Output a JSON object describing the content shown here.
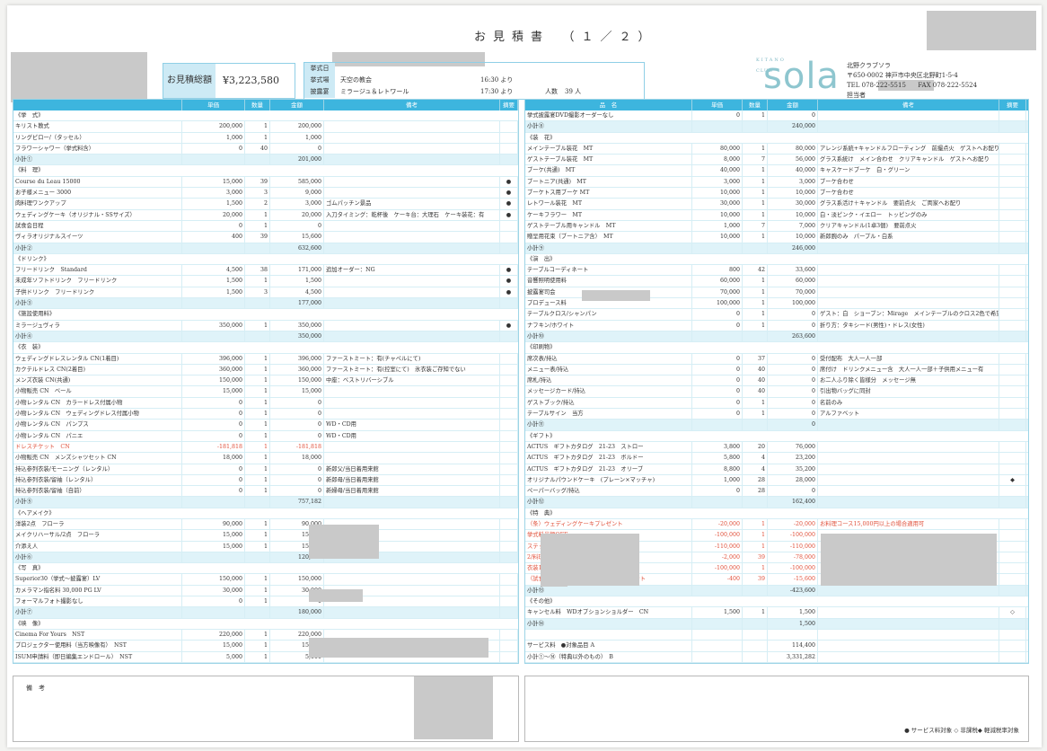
{
  "header": {
    "title": "お見積書　（１／２）",
    "total_label": "お見積総額",
    "total_value": "¥3,223,580",
    "info": {
      "date_label": "挙式日",
      "venue_label": "挙式場",
      "venue_value": "天空の教会",
      "venue_time": "16:30 より",
      "reception_label": "披露宴",
      "reception_value": "ミラージュ＆レトワール",
      "reception_time": "17:30 より",
      "guests_label": "人数",
      "guests_value": "39 人"
    }
  },
  "company": {
    "logo_top": "KITANO",
    "logo_text": "sola",
    "logo_sub": "CLUB",
    "name": "北野クラブソラ",
    "address": "〒650-0002 神戸市中央区北野町1-5-4",
    "tel": "TEL 078-222-5515",
    "fax": "FAX 078-222-5524",
    "person_label": "担当者"
  },
  "columns_left": [
    "",
    "単価",
    "数量",
    "金額",
    "備考",
    "摘要"
  ],
  "columns_right": [
    "品　名",
    "単価",
    "数量",
    "金額",
    "備考",
    "摘要"
  ],
  "left_rows": [
    {
      "t": "s",
      "name": "《挙　式》"
    },
    {
      "name": "キリスト教式",
      "price": "200,000",
      "qty": "1",
      "amt": "200,000",
      "note": "",
      "mark": ""
    },
    {
      "name": "リングピロー/（タッセル）",
      "price": "1,000",
      "qty": "1",
      "amt": "1,000",
      "note": "",
      "mark": ""
    },
    {
      "name": "フラワーシャワー（挙式料含）",
      "price": "0",
      "qty": "40",
      "amt": "0",
      "note": "",
      "mark": ""
    },
    {
      "t": "sub",
      "name": "小計①",
      "amt": "201,000"
    },
    {
      "t": "s",
      "name": "《料　理》"
    },
    {
      "name": "Course du Leau 15000",
      "price": "15,000",
      "qty": "39",
      "amt": "585,000",
      "note": "",
      "mark": "●"
    },
    {
      "name": "お子様メニュー 3000",
      "price": "3,000",
      "qty": "3",
      "amt": "9,000",
      "note": "",
      "mark": "●"
    },
    {
      "name": "肉料理ワンクアップ",
      "price": "1,500",
      "qty": "2",
      "amt": "3,000",
      "note": "ゴムパッチン景品",
      "mark": "●"
    },
    {
      "name": "ウェディングケーキ（オリジナル・SSサイズ）",
      "price": "20,000",
      "qty": "1",
      "amt": "20,000",
      "note": "入刀タイミング：乾杯後　ケーキ台：大理石　ケーキ装花：有",
      "mark": "●"
    },
    {
      "name": "試食会日程",
      "price": "0",
      "qty": "1",
      "amt": "0",
      "note": "",
      "mark": ""
    },
    {
      "name": "ヴィラオリジナルスイーツ",
      "price": "400",
      "qty": "39",
      "amt": "15,600",
      "note": "",
      "mark": ""
    },
    {
      "t": "sub",
      "name": "小計②",
      "amt": "632,600"
    },
    {
      "t": "s",
      "name": "《ドリンク》"
    },
    {
      "name": "フリードリンク　Standard",
      "price": "4,500",
      "qty": "38",
      "amt": "171,000",
      "note": "追加オーダー：NG",
      "mark": "●"
    },
    {
      "name": "未成年ソフトドリンク　フリードリンク",
      "price": "1,500",
      "qty": "1",
      "amt": "1,500",
      "note": "",
      "mark": "●"
    },
    {
      "name": "子供ドリンク　フリードリンク",
      "price": "1,500",
      "qty": "3",
      "amt": "4,500",
      "note": "",
      "mark": "●"
    },
    {
      "t": "sub",
      "name": "小計③",
      "amt": "177,000"
    },
    {
      "t": "s",
      "name": "《施設使用料》"
    },
    {
      "name": "ミラージュヴィラ",
      "price": "350,000",
      "qty": "1",
      "amt": "350,000",
      "note": "",
      "mark": "●"
    },
    {
      "t": "sub",
      "name": "小計④",
      "amt": "350,000"
    },
    {
      "t": "s",
      "name": "《衣　装》"
    },
    {
      "name": "ウェディングドレスレンタル CN(1着目)",
      "price": "396,000",
      "qty": "1",
      "amt": "396,000",
      "note": "ファーストミート：有(チャペルにて)",
      "mark": ""
    },
    {
      "name": "カクテルドレス CN(2着目)",
      "price": "360,000",
      "qty": "1",
      "amt": "360,000",
      "note": "ファーストミート：有(控室にて)　氷衣装ご存知でない",
      "mark": ""
    },
    {
      "name": "メンズ衣装 CN(共通)",
      "price": "150,000",
      "qty": "1",
      "amt": "150,000",
      "note": "中座：ベストリバーシブル",
      "mark": ""
    },
    {
      "name": "小物販売 CN　ベール",
      "price": "15,000",
      "qty": "1",
      "amt": "15,000",
      "note": "",
      "mark": ""
    },
    {
      "name": "小物レンタル CN　カラードレス付属小物",
      "price": "0",
      "qty": "1",
      "amt": "0",
      "note": "",
      "mark": ""
    },
    {
      "name": "小物レンタル CN　ウェディングドレス付属小物",
      "price": "0",
      "qty": "1",
      "amt": "0",
      "note": "",
      "mark": ""
    },
    {
      "name": "小物レンタル CN　パンプス",
      "price": "0",
      "qty": "1",
      "amt": "0",
      "note": "WD・CD用",
      "mark": ""
    },
    {
      "name": "小物レンタル CN　パニエ",
      "price": "0",
      "qty": "1",
      "amt": "0",
      "note": "WD・CD用",
      "mark": ""
    },
    {
      "t": "red",
      "name": "ドレスチケット　CN",
      "price": "-181,818",
      "qty": "1",
      "amt": "-181,818",
      "note": "",
      "mark": ""
    },
    {
      "name": "小物販売 CN　メンズシャツセット CN",
      "price": "18,000",
      "qty": "1",
      "amt": "18,000",
      "note": "",
      "mark": ""
    },
    {
      "name": "持込参列衣装/モーニング（レンタル）",
      "price": "0",
      "qty": "1",
      "amt": "0",
      "note": "新郎父/当日着用来館",
      "mark": ""
    },
    {
      "name": "持込参列衣装/留袖（レンタル）",
      "price": "0",
      "qty": "1",
      "amt": "0",
      "note": "新郎母/当日着用来館",
      "mark": ""
    },
    {
      "name": "持込参列衣装/留袖（自前）",
      "price": "0",
      "qty": "1",
      "amt": "0",
      "note": "新婦母/当日着用来館",
      "mark": ""
    },
    {
      "t": "sub",
      "name": "小計⑤",
      "amt": "757,182"
    },
    {
      "t": "s",
      "name": "《ヘアメイク》"
    },
    {
      "name": "洋装2点　フローラ",
      "price": "90,000",
      "qty": "1",
      "amt": "90,000",
      "note": "",
      "mark": ""
    },
    {
      "name": "メイクリハーサル/2点　フローラ",
      "price": "15,000",
      "qty": "1",
      "amt": "15,000",
      "note": "",
      "mark": ""
    },
    {
      "name": "介添え人",
      "price": "15,000",
      "qty": "1",
      "amt": "15,000",
      "note": "",
      "mark": ""
    },
    {
      "t": "sub",
      "name": "小計⑥",
      "amt": "120,000"
    },
    {
      "t": "s",
      "name": "《写　真》"
    },
    {
      "name": "Superior30（挙式〜披露宴）LV",
      "price": "150,000",
      "qty": "1",
      "amt": "150,000",
      "note": "",
      "mark": ""
    },
    {
      "name": "カメラマン指名料 30,000 PG LV",
      "price": "30,000",
      "qty": "1",
      "amt": "30,000",
      "note": "",
      "mark": ""
    },
    {
      "name": "フォーマルフォト撮影なし",
      "price": "0",
      "qty": "1",
      "amt": "0",
      "note": "",
      "mark": ""
    },
    {
      "t": "sub",
      "name": "小計⑦",
      "amt": "180,000"
    },
    {
      "t": "s",
      "name": "《映　像》"
    },
    {
      "name": "Cinema For Yours　NST",
      "price": "220,000",
      "qty": "1",
      "amt": "220,000",
      "note": "",
      "mark": ""
    },
    {
      "name": "プロジェクター使用料（当方映像有）　NST",
      "price": "15,000",
      "qty": "1",
      "amt": "15,000",
      "note": "",
      "mark": ""
    },
    {
      "name": "ISUM申請料（即日編集エンドロール）　NST",
      "price": "5,000",
      "qty": "1",
      "amt": "5,000",
      "note": "",
      "mark": ""
    }
  ],
  "right_rows": [
    {
      "name": "挙式披露宴DVD撮影オーダーなし",
      "price": "0",
      "qty": "1",
      "amt": "0",
      "note": "",
      "mark": ""
    },
    {
      "t": "sub",
      "name": "小計⑧",
      "amt": "240,000"
    },
    {
      "t": "s",
      "name": "《装　花》"
    },
    {
      "name": "メインテーブル装花　MT",
      "price": "80,000",
      "qty": "1",
      "amt": "80,000",
      "note": "アレンジ系統+キャンドルフローティング　前撮点火　ゲストへお配り",
      "mark": ""
    },
    {
      "name": "ゲストテーブル装花　MT",
      "price": "8,000",
      "qty": "7",
      "amt": "56,000",
      "note": "グラス系統け　メイン合わせ　クリアキャンドル　ゲストへお配り",
      "mark": ""
    },
    {
      "name": "ブーケ(共通)　MT",
      "price": "40,000",
      "qty": "1",
      "amt": "40,000",
      "note": "キャスケードブーケ　白・グリーン",
      "mark": ""
    },
    {
      "name": "ブートニア(共通)　MT",
      "price": "3,000",
      "qty": "1",
      "amt": "3,000",
      "note": "ブーケ合わせ",
      "mark": ""
    },
    {
      "name": "ブーケトス用ブーケ MT",
      "price": "10,000",
      "qty": "1",
      "amt": "10,000",
      "note": "ブーケ合わせ",
      "mark": ""
    },
    {
      "name": "レトワール装花　MT",
      "price": "30,000",
      "qty": "1",
      "amt": "30,000",
      "note": "グラス系活け＋キャンドル　要前点火　ご両家へお配り",
      "mark": ""
    },
    {
      "name": "ケーキフラワー　MT",
      "price": "10,000",
      "qty": "1",
      "amt": "10,000",
      "note": "白・淡ピンク・イエロー　トッピングのみ",
      "mark": ""
    },
    {
      "name": "ゲストテーブル用キャンドル　MT",
      "price": "1,000",
      "qty": "7",
      "amt": "7,000",
      "note": "クリアキャンドル(1卓3個)　要前点火",
      "mark": ""
    },
    {
      "name": "贈呈用花束（ブートニア含）　MT",
      "price": "10,000",
      "qty": "1",
      "amt": "10,000",
      "note": "新郎腕のみ　パープル・白系",
      "mark": ""
    },
    {
      "t": "sub",
      "name": "小計⑨",
      "amt": "246,000"
    },
    {
      "t": "s",
      "name": "《演　出》"
    },
    {
      "name": "テーブルコーディネート",
      "price": "800",
      "qty": "42",
      "amt": "33,600",
      "note": "",
      "mark": ""
    },
    {
      "name": "音響照明使用料",
      "price": "60,000",
      "qty": "1",
      "amt": "60,000",
      "note": "",
      "mark": ""
    },
    {
      "name": "披露宴司会",
      "price": "70,000",
      "qty": "1",
      "amt": "70,000",
      "note": "",
      "mark": ""
    },
    {
      "name": "プロデュース料",
      "price": "100,000",
      "qty": "1",
      "amt": "100,000",
      "note": "",
      "mark": ""
    },
    {
      "name": "テーブルクロス/シャンパン",
      "price": "0",
      "qty": "1",
      "amt": "0",
      "note": "ゲスト：白　ショーブン：Mirage　メインテーブルのクロス2色で希望",
      "mark": ""
    },
    {
      "name": "ナフキン/ホワイト",
      "price": "0",
      "qty": "1",
      "amt": "0",
      "note": "折り方：タキシード(男性)・ドレス(女性)",
      "mark": ""
    },
    {
      "t": "sub",
      "name": "小計⑩",
      "amt": "263,600"
    },
    {
      "t": "s",
      "name": "《印刷物》"
    },
    {
      "name": "席次表/持込",
      "price": "0",
      "qty": "37",
      "amt": "0",
      "note": "受付配布　大人一人一部",
      "mark": ""
    },
    {
      "name": "メニュー表/持込",
      "price": "0",
      "qty": "40",
      "amt": "0",
      "note": "席付け　ドリンクメニュー含　大人一人一部＋子供用メニュー有",
      "mark": ""
    },
    {
      "name": "席札/持込",
      "price": "0",
      "qty": "40",
      "amt": "0",
      "note": "お二人ふり除く皆様分　メッセージ無",
      "mark": ""
    },
    {
      "name": "メッセージカード/持込",
      "price": "0",
      "qty": "40",
      "amt": "0",
      "note": "引出物バッグに同封",
      "mark": ""
    },
    {
      "name": "ゲストブック/持込",
      "price": "0",
      "qty": "1",
      "amt": "0",
      "note": "名前のみ",
      "mark": ""
    },
    {
      "name": "テーブルサイン　当方",
      "price": "0",
      "qty": "1",
      "amt": "0",
      "note": "アルファベット",
      "mark": ""
    },
    {
      "t": "sub",
      "name": "小計⑪",
      "amt": "0"
    },
    {
      "t": "s",
      "name": "《ギフト》"
    },
    {
      "name": "ACTUS　ギフトカタログ　21-23　ストロー",
      "price": "3,800",
      "qty": "20",
      "amt": "76,000",
      "note": "",
      "mark": ""
    },
    {
      "name": "ACTUS　ギフトカタログ　21-23　ボルドー",
      "price": "5,800",
      "qty": "4",
      "amt": "23,200",
      "note": "",
      "mark": ""
    },
    {
      "name": "ACTUS　ギフトカタログ　21-23　オリーブ",
      "price": "8,800",
      "qty": "4",
      "amt": "35,200",
      "note": "",
      "mark": ""
    },
    {
      "name": "オリジナルパウンドケーキ　(プレーン×マッチャ)",
      "price": "1,000",
      "qty": "28",
      "amt": "28,000",
      "note": "",
      "mark": "◆"
    },
    {
      "name": "ペーパーバッグ/持込",
      "price": "0",
      "qty": "28",
      "amt": "0",
      "note": "",
      "mark": ""
    },
    {
      "t": "sub",
      "name": "小計⑫",
      "amt": "162,400"
    },
    {
      "t": "s",
      "name": "《特　典》"
    },
    {
      "t": "red",
      "name": "（条）ウェディングケーキプレゼント",
      "price": "-20,000",
      "qty": "1",
      "amt": "-20,000",
      "note": "お料理コース15,000円以上の場合適用可",
      "mark": ""
    },
    {
      "t": "red",
      "name": "挙式料半額OFF",
      "price": "-100,000",
      "qty": "1",
      "amt": "-100,000",
      "note": "",
      "mark": ""
    },
    {
      "t": "red",
      "name": "ステップアップ料金10万円分",
      "price": "-110,000",
      "qty": "1",
      "amt": "-110,000",
      "note": "",
      "mark": ""
    },
    {
      "t": "red",
      "name": "2/料理ワンランクアップ分",
      "price": "-2,000",
      "qty": "39",
      "amt": "-78,000",
      "note": "",
      "mark": ""
    },
    {
      "t": "red",
      "name": "衣装10万円分",
      "price": "-100,000",
      "qty": "1",
      "amt": "-100,000",
      "note": "",
      "mark": ""
    },
    {
      "t": "red",
      "name": "（試食会特典）オリジナルスイーツプレゼント",
      "price": "-400",
      "qty": "39",
      "amt": "-15,600",
      "note": "",
      "mark": ""
    },
    {
      "t": "sub",
      "name": "小計⑬",
      "amt": "-423,600"
    },
    {
      "t": "s",
      "name": "《その他》"
    },
    {
      "name": "キャンセル料　WDオプションショルダー　CN",
      "price": "1,500",
      "qty": "1",
      "amt": "1,500",
      "note": "",
      "mark": "◇"
    },
    {
      "t": "sub",
      "name": "小計⑭",
      "amt": "1,500"
    },
    {
      "t": "blank"
    },
    {
      "name": "サービス料　●対象品目 A",
      "price": "",
      "qty": "",
      "amt": "114,400",
      "note": "",
      "mark": ""
    },
    {
      "name": "小計①〜⑭（特典以外のもの）　B",
      "price": "",
      "qty": "",
      "amt": "3,331,282",
      "note": "",
      "mark": ""
    }
  ],
  "notes": {
    "label": "備　考",
    "legend": "● サービス料対象 ◇ 非課税◆ 軽減税率対象"
  }
}
